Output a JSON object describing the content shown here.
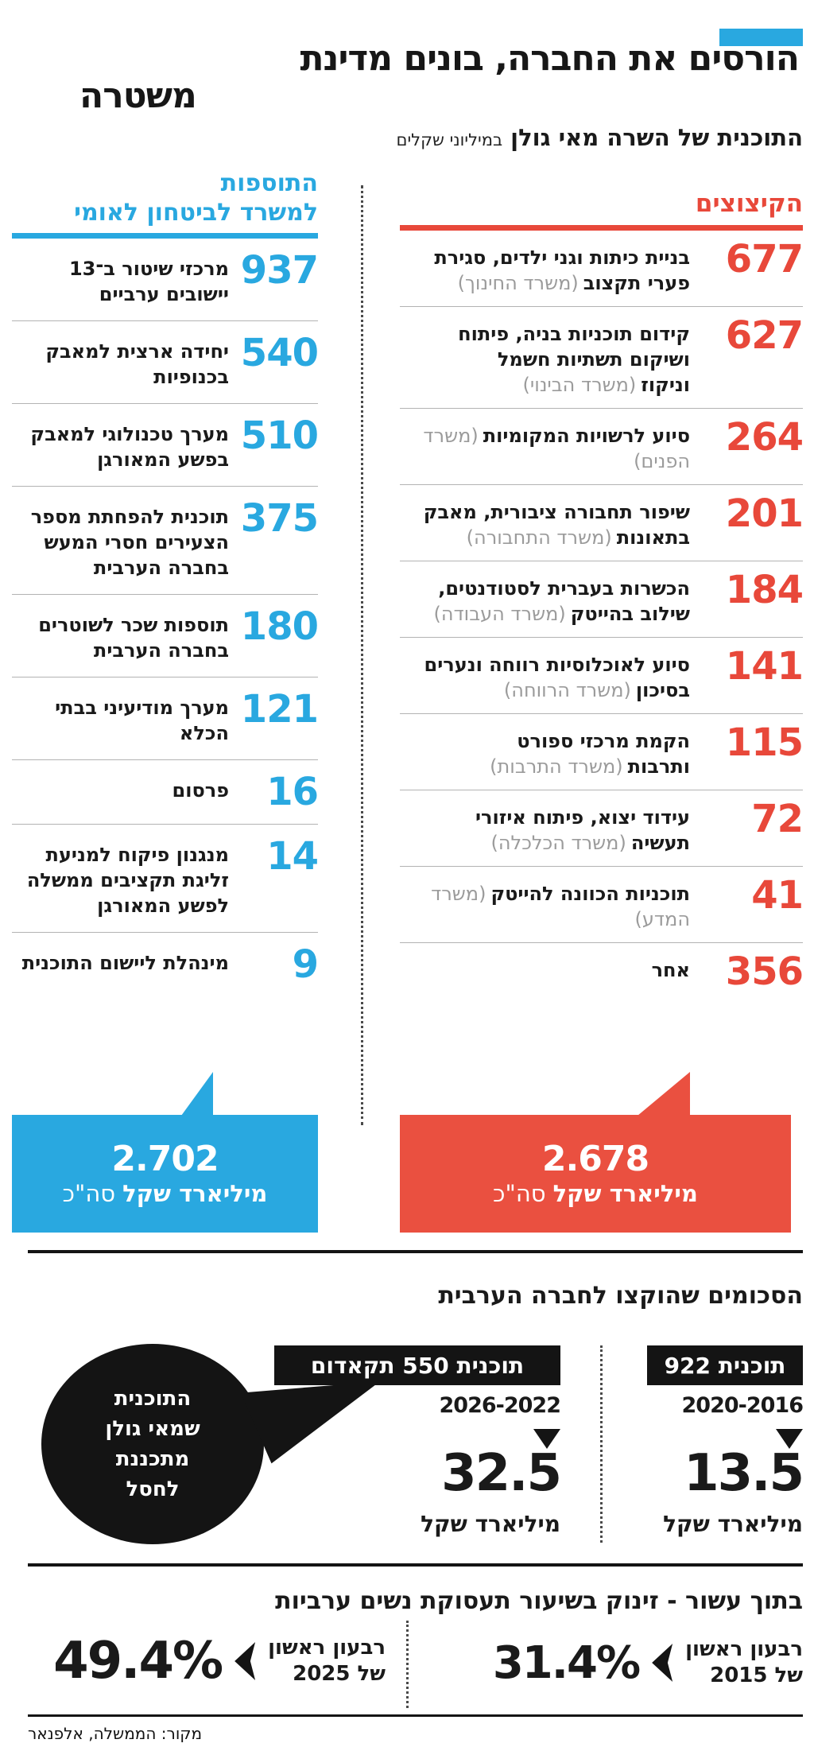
{
  "colors": {
    "blue": "#29A8E0",
    "red": "#E8483A",
    "red_box": "#EA5040",
    "black": "#141414",
    "gray_ministry": "#9B9B9B"
  },
  "header": {
    "title_line1": "הורסים את החברה, בונים מדינת",
    "title_line2": "משטרה",
    "subtitle": "התוכנית של השרה מאי גולן",
    "subtitle_note": "במיליוני שקלים"
  },
  "additions": {
    "title_line1": "התוספות",
    "title_line2": "למשרד לביטחון לאומי",
    "items": [
      {
        "value": "937",
        "label": "מרכזי שיטור ב־13 יישובים ערביים"
      },
      {
        "value": "540",
        "label": "יחידה ארצית למאבק בכנופיות"
      },
      {
        "value": "510",
        "label": "מערך טכנולוגי למאבק בפשע המאורגן"
      },
      {
        "value": "375",
        "label": "תוכנית להפחתת מספר הצעירים חסרי המעש בחברה הערבית"
      },
      {
        "value": "180",
        "label": "תוספות שכר לשוטרים בחברה הערבית"
      },
      {
        "value": "121",
        "label": "מערך מודיעיני בבתי הכלא"
      },
      {
        "value": "16",
        "label": "פרסום"
      },
      {
        "value": "14",
        "label": "מנגנון פיקוח למניעת זליגת תקציבים ממשלה לפשע המאורגן"
      },
      {
        "value": "9",
        "label": "מינהלת ליישום התוכנית"
      }
    ],
    "total_value": "2.702",
    "total_unit": "מיליארד שקל",
    "total_suffix": "סה\"כ"
  },
  "cuts": {
    "title": "הקיצוצים",
    "items": [
      {
        "value": "677",
        "label": "בניית כיתות וגני ילדים, סגירת פערי תקצוב",
        "ministry": "(משרד החינוך)"
      },
      {
        "value": "627",
        "label": "קידום תוכניות בניה, פיתוח ושיקום תשתיות חשמל וניקוז",
        "ministry": "(משרד הבינוי)"
      },
      {
        "value": "264",
        "label": "סיוע לרשויות המקומיות",
        "ministry": "(משרד הפנים)"
      },
      {
        "value": "201",
        "label": "שיפור תחבורה ציבורית, מאבק בתאונות",
        "ministry": "(משרד התחבורה)"
      },
      {
        "value": "184",
        "label": "הכשרות בעברית לסטודנטים, שילוב בהייטק",
        "ministry": "(משרד העבודה)"
      },
      {
        "value": "141",
        "label": "סיוע לאוכלוסיות רווחה ונערים בסיכון",
        "ministry": "(משרד הרווחה)"
      },
      {
        "value": "115",
        "label": "הקמת מרכזי ספורט ותרבות",
        "ministry": "(משרד התרבות)"
      },
      {
        "value": "72",
        "label": "עידוד יצוא, פיתוח איזורי תעשיה",
        "ministry": "(משרד הכלכלה)"
      },
      {
        "value": "41",
        "label": "תוכניות הכוונה להייטק",
        "ministry": "(משרד המדע)"
      },
      {
        "value": "356",
        "label": "אחר",
        "ministry": ""
      }
    ],
    "total_value": "2.678",
    "total_unit": "מיליארד שקל",
    "total_suffix": "סה\"כ"
  },
  "allocations": {
    "title": "הסכומים שהוקצו לחברה הערבית",
    "bubble_text": "התוכנית שמאי גולן מתכננת לחסל",
    "programs": [
      {
        "name": "תוכנית 550 תקאדום",
        "years": "2026-2022",
        "value": "32.5",
        "unit": "מיליארד שקל"
      },
      {
        "name": "תוכנית 922",
        "years": "2020-2016",
        "value": "13.5",
        "unit": "מיליארד שקל"
      }
    ]
  },
  "employment": {
    "title": "בתוך עשור - זינוק בשיעור תעסוקת נשים ערביות",
    "stats": [
      {
        "period_line1": "רבעון ראשון",
        "period_line2": "של 2015",
        "value": "31.4%"
      },
      {
        "period_line1": "רבעון ראשון",
        "period_line2": "של 2025",
        "value": "49.4%"
      }
    ]
  },
  "source": "מקור: הממשלה, אלפנאר",
  "chart_data": [
    {
      "type": "table",
      "title": "התוספות למשרד לביטחון לאומי (במיליוני שקלים)",
      "categories": [
        "מרכזי שיטור ב־13 יישובים ערביים",
        "יחידה ארצית למאבק בכנופיות",
        "מערך טכנולוגי למאבק בפשע המאורגן",
        "תוכנית להפחתת מספר הצעירים חסרי המעש בחברה הערבית",
        "תוספות שכר לשוטרים בחברה הערבית",
        "מערך מודיעיני בבתי הכלא",
        "פרסום",
        "מנגנון פיקוח למניעת זליגת תקציבים ממשלה לפשע המאורגן",
        "מינהלת ליישום התוכנית"
      ],
      "values": [
        937,
        540,
        510,
        375,
        180,
        121,
        16,
        14,
        9
      ],
      "total": "2.702 מיליארד שקל סה\"כ"
    },
    {
      "type": "table",
      "title": "הקיצוצים (במיליוני שקלים)",
      "categories": [
        "בניית כיתות וגני ילדים, סגירת פערי תקצוב (משרד החינוך)",
        "קידום תוכניות בניה, פיתוח ושיקום תשתיות חשמל וניקוז (משרד הבינוי)",
        "סיוע לרשויות המקומיות (משרד הפנים)",
        "שיפור תחבורה ציבורית, מאבק בתאונות (משרד התחבורה)",
        "הכשרות בעברית לסטודנטים, שילוב בהייטק (משרד העבודה)",
        "סיוע לאוכלוסיות רווחה ונערים בסיכון (משרד הרווחה)",
        "הקמת מרכזי ספורט ותרבות (משרד התרבות)",
        "עידוד יצוא, פיתוח איזורי תעשיה (משרד הכלכלה)",
        "תוכניות הכוונה להייטק (משרד המדע)",
        "אחר"
      ],
      "values": [
        677,
        627,
        264,
        201,
        184,
        141,
        115,
        72,
        41,
        356
      ],
      "total": "2.678 מיליארד שקל סה\"כ"
    },
    {
      "type": "table",
      "title": "הסכומים שהוקצו לחברה הערבית (מיליארד שקל)",
      "categories": [
        "תוכנית 922 (2020-2016)",
        "תוכנית 550 תקאדום (2026-2022)"
      ],
      "values": [
        13.5,
        32.5
      ]
    },
    {
      "type": "table",
      "title": "בתוך עשור - זינוק בשיעור תעסוקת נשים ערביות (%)",
      "categories": [
        "רבעון ראשון של 2015",
        "רבעון ראשון של 2025"
      ],
      "values": [
        31.4,
        49.4
      ]
    }
  ]
}
